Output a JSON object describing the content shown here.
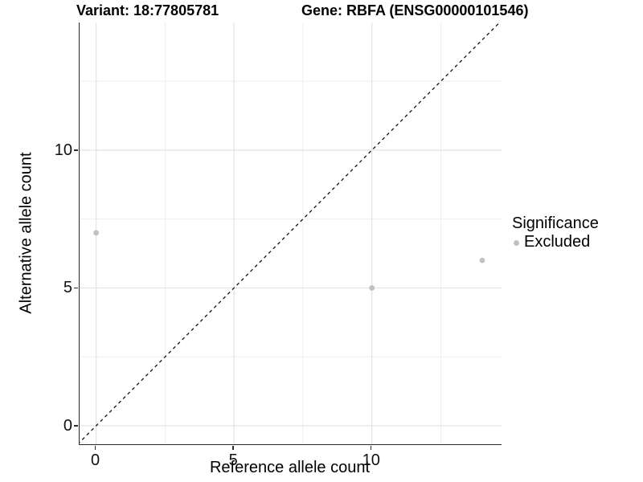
{
  "titles": {
    "variant": "Variant: 18:77805781",
    "gene": "Gene: RBFA (ENSG00000101546)"
  },
  "axes": {
    "x_label": "Reference allele count",
    "y_label": "Alternative allele count"
  },
  "legend": {
    "title": "Significance",
    "items": [
      {
        "label": "Excluded",
        "color": "#c1c1c1"
      }
    ]
  },
  "chart_data": {
    "type": "scatter",
    "title": "Variant: 18:77805781 | Gene: RBFA (ENSG00000101546)",
    "xlabel": "Reference allele count",
    "ylabel": "Alternative allele count",
    "series": [
      {
        "name": "Excluded",
        "color": "#c1c1c1",
        "points": [
          [
            0,
            7
          ],
          [
            10,
            5
          ],
          [
            14,
            6
          ]
        ]
      }
    ],
    "identity_line": {
      "type": "y=x",
      "style": "dashed",
      "color": "#111111"
    },
    "xlim": [
      -0.6,
      14.7
    ],
    "ylim": [
      -0.67,
      14.63
    ],
    "x_ticks": [
      0,
      5,
      10
    ],
    "y_ticks": [
      0,
      5,
      10
    ],
    "grid": {
      "major": [
        0,
        5,
        10
      ],
      "minor": [
        2.5,
        7.5,
        12.5
      ]
    },
    "legend_position": "right",
    "legend_title": "Significance",
    "colors": {
      "grid_major": "#e3e3e3",
      "grid_minor": "#eeeeee",
      "axis_line": "#2b2b2b",
      "point": "#c1c1c1",
      "identity_line": "#111111",
      "background": "#ffffff"
    }
  }
}
